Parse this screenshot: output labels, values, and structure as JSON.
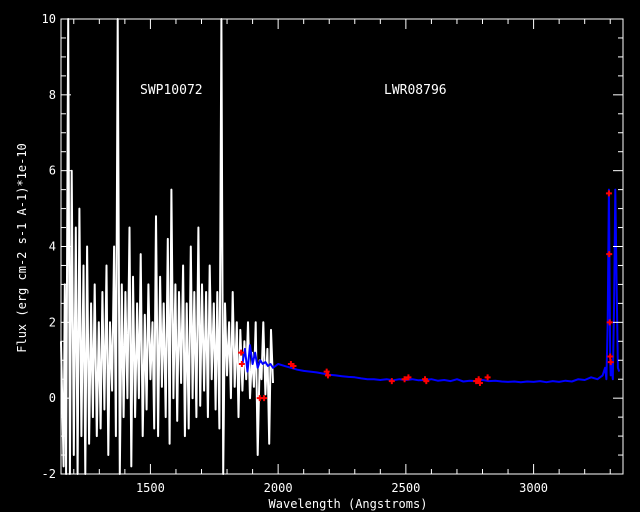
{
  "chart_data": {
    "type": "line",
    "title": "",
    "xlabel": "Wavelength (Angstroms)",
    "ylabel": "Flux (erg cm-2 s-1 A-1)*1e-10",
    "xlim": [
      1150,
      3350
    ],
    "ylim": [
      -2,
      10
    ],
    "x_ticks": [
      1500,
      2000,
      2500,
      3000
    ],
    "y_ticks": [
      -2,
      0,
      2,
      4,
      6,
      8,
      10
    ],
    "x_tick_labels": [
      "1500",
      "2000",
      "2500",
      "3000"
    ],
    "y_tick_labels": [
      "-2",
      "0",
      "2",
      "4",
      "6",
      "8",
      "10"
    ],
    "grid": false,
    "annotations": [
      {
        "text": "SWP10072",
        "x": 1330,
        "y": 8.0
      },
      {
        "text": "LWR08796",
        "x": 1880,
        "y": 8.0
      }
    ],
    "series": [
      {
        "name": "SWP10072",
        "color": "#ffffff",
        "x": [
          1150,
          1160,
          1165,
          1170,
          1178,
          1185,
          1192,
          1200,
          1208,
          1215,
          1222,
          1230,
          1238,
          1245,
          1252,
          1260,
          1268,
          1275,
          1282,
          1290,
          1298,
          1305,
          1312,
          1320,
          1328,
          1335,
          1342,
          1350,
          1358,
          1365,
          1372,
          1380,
          1388,
          1395,
          1402,
          1410,
          1418,
          1425,
          1432,
          1440,
          1448,
          1455,
          1462,
          1470,
          1478,
          1485,
          1492,
          1500,
          1508,
          1515,
          1522,
          1530,
          1538,
          1545,
          1552,
          1560,
          1568,
          1575,
          1582,
          1590,
          1598,
          1605,
          1612,
          1620,
          1628,
          1635,
          1642,
          1650,
          1658,
          1665,
          1672,
          1680,
          1688,
          1695,
          1702,
          1710,
          1718,
          1725,
          1732,
          1740,
          1748,
          1755,
          1762,
          1770,
          1778,
          1785,
          1792,
          1800,
          1808,
          1815,
          1822,
          1830,
          1838,
          1845,
          1852,
          1860,
          1868,
          1875,
          1882,
          1890,
          1898,
          1905,
          1912,
          1920,
          1928,
          1935,
          1942,
          1950,
          1958,
          1965,
          1972,
          1980
        ],
        "y": [
          1.5,
          -1.8,
          3.0,
          -2.0,
          10.0,
          -2.0,
          6.0,
          -1.5,
          4.5,
          -2.0,
          5.0,
          -1.0,
          3.5,
          -2.0,
          4.0,
          -1.2,
          2.5,
          -0.5,
          3.0,
          -1.0,
          2.0,
          -0.8,
          2.8,
          -0.3,
          3.5,
          -1.5,
          2.0,
          0.2,
          4.0,
          -1.0,
          10.0,
          -2.0,
          3.0,
          -0.5,
          2.8,
          0.0,
          4.5,
          -1.8,
          3.2,
          -0.5,
          2.5,
          0.0,
          3.8,
          -1.0,
          2.2,
          -0.3,
          3.0,
          0.5,
          2.0,
          -0.8,
          4.8,
          -1.0,
          3.2,
          0.3,
          2.5,
          -0.5,
          4.2,
          -1.2,
          5.5,
          0.0,
          3.0,
          -0.6,
          2.8,
          0.4,
          3.5,
          -1.0,
          2.5,
          -0.8,
          4.0,
          0.0,
          2.8,
          -0.5,
          4.5,
          -0.2,
          3.0,
          0.2,
          2.8,
          -0.5,
          3.5,
          0.5,
          2.5,
          -0.3,
          2.8,
          -0.8,
          10.0,
          -2.0,
          2.5,
          0.6,
          2.0,
          0.0,
          2.8,
          0.3,
          2.0,
          -0.5,
          1.8,
          0.2,
          1.5,
          0.5,
          2.0,
          0.0,
          1.2,
          0.3,
          2.0,
          -1.5,
          1.0,
          0.5,
          2.0,
          0.1,
          1.3,
          -1.2,
          1.8,
          0.4
        ]
      },
      {
        "name": "LWR08796",
        "color": "#0000ff",
        "x": [
          1860,
          1870,
          1880,
          1890,
          1900,
          1910,
          1920,
          1930,
          1940,
          1950,
          1960,
          1970,
          1980,
          1990,
          2000,
          2025,
          2050,
          2075,
          2100,
          2125,
          2150,
          2175,
          2200,
          2225,
          2250,
          2275,
          2300,
          2325,
          2350,
          2375,
          2400,
          2425,
          2450,
          2475,
          2500,
          2525,
          2550,
          2575,
          2600,
          2625,
          2650,
          2675,
          2700,
          2725,
          2750,
          2775,
          2800,
          2825,
          2850,
          2875,
          2900,
          2925,
          2950,
          2975,
          3000,
          3025,
          3050,
          3075,
          3100,
          3125,
          3150,
          3175,
          3200,
          3225,
          3250,
          3270,
          3280,
          3285,
          3290,
          3295,
          3300,
          3302,
          3305,
          3310,
          3315,
          3320,
          3325,
          3330,
          3335
        ],
        "y": [
          0.9,
          1.3,
          0.7,
          1.4,
          0.9,
          1.2,
          0.8,
          1.0,
          0.9,
          0.95,
          0.85,
          0.9,
          0.8,
          0.85,
          0.9,
          0.85,
          0.8,
          0.75,
          0.72,
          0.7,
          0.68,
          0.65,
          0.62,
          0.6,
          0.58,
          0.56,
          0.55,
          0.52,
          0.5,
          0.5,
          0.48,
          0.5,
          0.47,
          0.5,
          0.48,
          0.5,
          0.47,
          0.48,
          0.5,
          0.46,
          0.48,
          0.45,
          0.5,
          0.44,
          0.46,
          0.45,
          0.48,
          0.45,
          0.46,
          0.44,
          0.43,
          0.44,
          0.42,
          0.44,
          0.43,
          0.45,
          0.42,
          0.45,
          0.43,
          0.46,
          0.44,
          0.5,
          0.48,
          0.55,
          0.5,
          0.6,
          0.8,
          0.5,
          2.0,
          5.5,
          1.0,
          0.6,
          0.9,
          0.5,
          2.5,
          5.5,
          3.0,
          0.8,
          0.7
        ]
      }
    ],
    "markers": {
      "name": "flagged points",
      "color": "#ff0000",
      "x": [
        1855,
        1858,
        1928,
        1945,
        2050,
        2060,
        2190,
        2195,
        2445,
        2495,
        2510,
        2575,
        2580,
        2775,
        2785,
        2790,
        2820,
        3295,
        3296,
        3298,
        3300,
        3302
      ],
      "y": [
        1.2,
        0.9,
        0.0,
        0.0,
        0.9,
        0.85,
        0.7,
        0.6,
        0.45,
        0.5,
        0.55,
        0.5,
        0.45,
        0.45,
        0.5,
        0.4,
        0.55,
        5.4,
        3.8,
        2.0,
        1.1,
        0.95
      ]
    }
  }
}
